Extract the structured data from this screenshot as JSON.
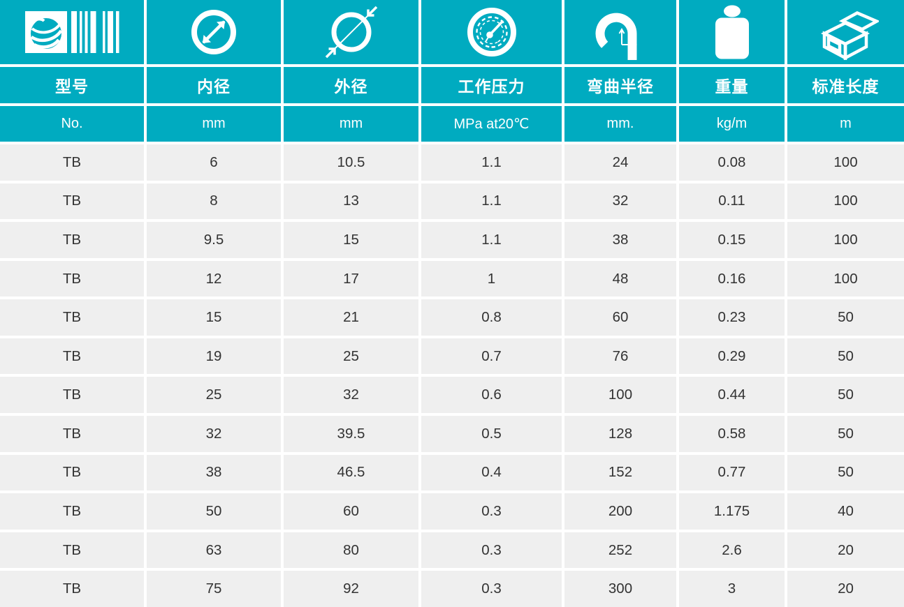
{
  "colors": {
    "accent": "#00abc0",
    "row_bg": "#efefef",
    "gap": "#ffffff",
    "data_text": "#333333",
    "header_text": "#ffffff"
  },
  "table": {
    "columns": [
      {
        "key": "model",
        "icon": "barcode-globe-icon",
        "title": "型号",
        "unit": "No."
      },
      {
        "key": "inner_diameter",
        "icon": "inner-diameter-icon",
        "title": "内径",
        "unit": "mm"
      },
      {
        "key": "outer_diameter",
        "icon": "outer-diameter-icon",
        "title": "外径",
        "unit": "mm"
      },
      {
        "key": "working_pressure",
        "icon": "pressure-gauge-icon",
        "title": "工作压力",
        "unit": "MPa at20℃"
      },
      {
        "key": "bend_radius",
        "icon": "bend-radius-icon",
        "title": "弯曲半径",
        "unit": "mm."
      },
      {
        "key": "weight",
        "icon": "weight-icon",
        "title": "重量",
        "unit": "kg/m"
      },
      {
        "key": "standard_length",
        "icon": "package-box-icon",
        "title": "标准长度",
        "unit": "m"
      }
    ],
    "rows": [
      [
        "TB",
        "6",
        "10.5",
        "1.1",
        "24",
        "0.08",
        "100"
      ],
      [
        "TB",
        "8",
        "13",
        "1.1",
        "32",
        "0.11",
        "100"
      ],
      [
        "TB",
        "9.5",
        "15",
        "1.1",
        "38",
        "0.15",
        "100"
      ],
      [
        "TB",
        "12",
        "17",
        "1",
        "48",
        "0.16",
        "100"
      ],
      [
        "TB",
        "15",
        "21",
        "0.8",
        "60",
        "0.23",
        "50"
      ],
      [
        "TB",
        "19",
        "25",
        "0.7",
        "76",
        "0.29",
        "50"
      ],
      [
        "TB",
        "25",
        "32",
        "0.6",
        "100",
        "0.44",
        "50"
      ],
      [
        "TB",
        "32",
        "39.5",
        "0.5",
        "128",
        "0.58",
        "50"
      ],
      [
        "TB",
        "38",
        "46.5",
        "0.4",
        "152",
        "0.77",
        "50"
      ],
      [
        "TB",
        "50",
        "60",
        "0.3",
        "200",
        "1.175",
        "40"
      ],
      [
        "TB",
        "63",
        "80",
        "0.3",
        "252",
        "2.6",
        "20"
      ],
      [
        "TB",
        "75",
        "92",
        "0.3",
        "300",
        "3",
        "20"
      ]
    ]
  }
}
